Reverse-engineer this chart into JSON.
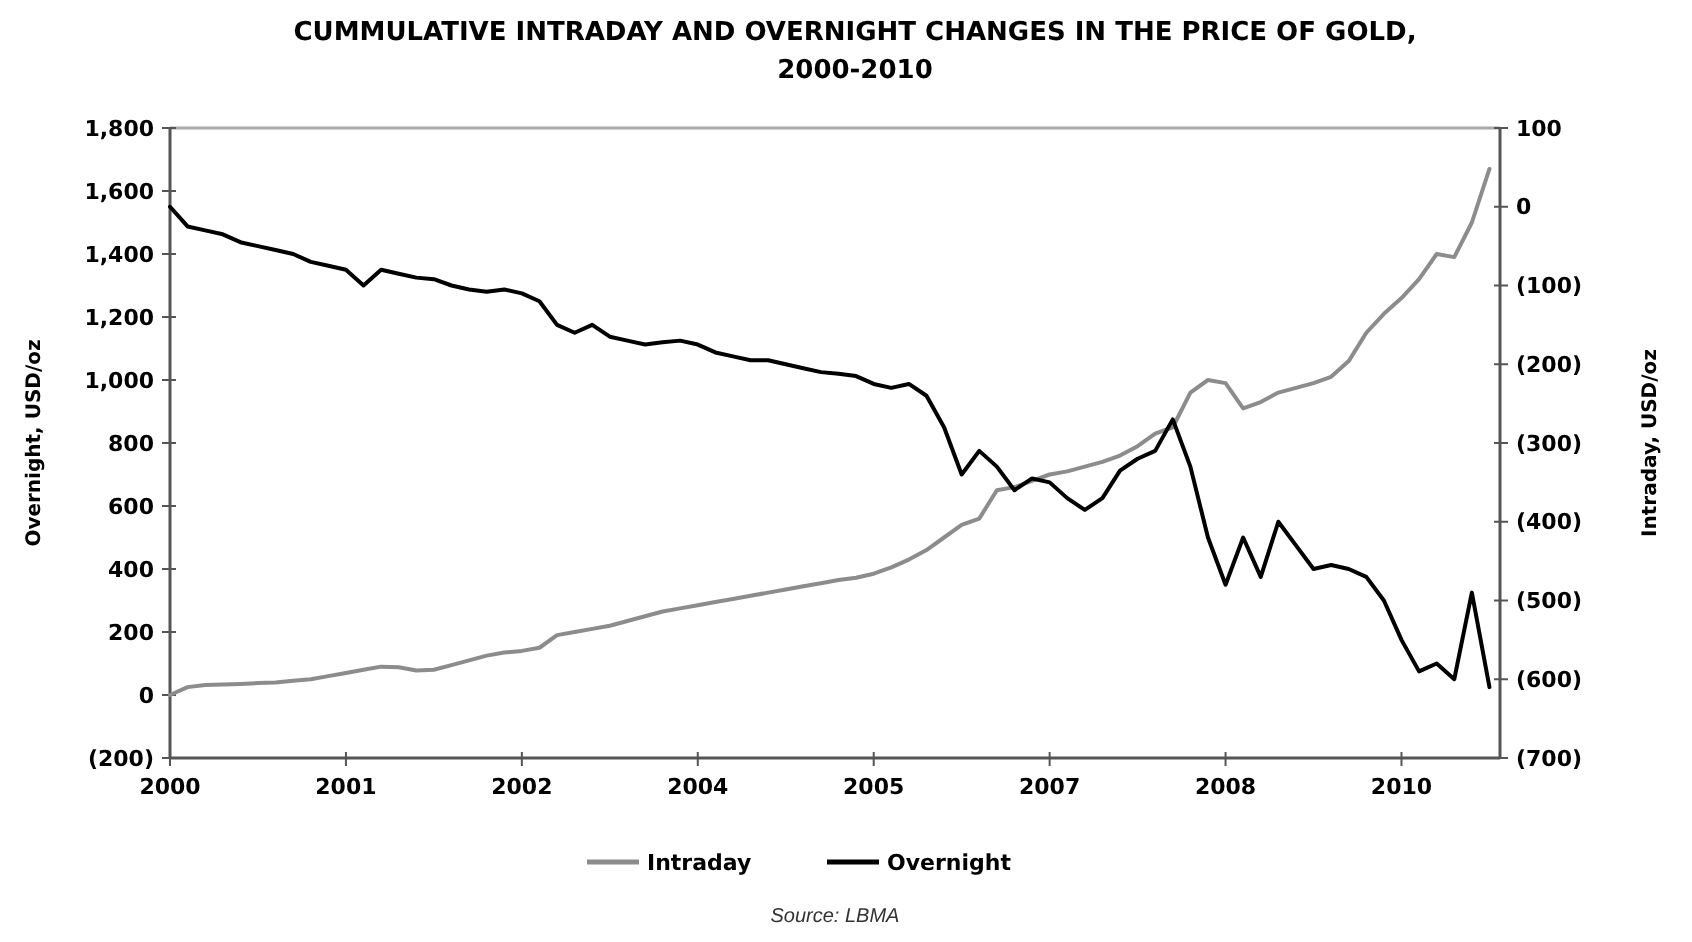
{
  "chart_data": {
    "type": "line",
    "title": "CUMMULATIVE INTRADAY AND OVERNIGHT CHANGES IN THE PRICE OF GOLD, 2000-2010",
    "ylabel": "Overnight, USD/oz",
    "y2label": "Intraday, USD/oz",
    "annotations": [
      "Source: LBMA"
    ],
    "legend": "bottom",
    "grid": false,
    "line_style": "solid",
    "marker": "none",
    "categories": [
      "2000",
      null,
      null,
      null,
      null,
      null,
      null,
      null,
      null,
      null,
      "2001",
      null,
      null,
      null,
      null,
      null,
      null,
      null,
      null,
      null,
      "2002",
      null,
      null,
      null,
      null,
      null,
      null,
      null,
      null,
      null,
      "2004",
      null,
      null,
      null,
      null,
      null,
      null,
      null,
      null,
      null,
      "2005",
      null,
      null,
      null,
      null,
      null,
      null,
      null,
      null,
      null,
      "2007",
      null,
      null,
      null,
      null,
      null,
      null,
      null,
      null,
      null,
      "2008",
      null,
      null,
      null,
      null,
      null,
      null,
      null,
      null,
      null,
      "2010",
      null,
      null,
      null,
      null,
      null
    ],
    "ylim": [
      -200,
      1800
    ],
    "yticks": [
      {
        "value": -200,
        "label": "(200)"
      },
      0,
      200,
      400,
      600,
      800,
      {
        "value": 1000,
        "label": "1,000"
      },
      {
        "value": 1200,
        "label": "1,200"
      },
      {
        "value": 1400,
        "label": "1,400"
      },
      {
        "value": 1600,
        "label": "1,600"
      },
      {
        "value": 1800,
        "label": "1,800"
      }
    ],
    "y2lim": [
      -700,
      100
    ],
    "y2ticks": [
      {
        "value": -700,
        "label": "(700)"
      },
      {
        "value": -600,
        "label": "(600)"
      },
      {
        "value": -500,
        "label": "(500)"
      },
      {
        "value": -400,
        "label": "(400)"
      },
      {
        "value": -300,
        "label": "(300)"
      },
      {
        "value": -200,
        "label": "(200)"
      },
      {
        "value": -100,
        "label": "(100)"
      },
      0,
      100
    ],
    "series": [
      {
        "name": "Intraday",
        "color": "#8c8c8c",
        "values": [
          0,
          25,
          32,
          33,
          35,
          38,
          40,
          45,
          50,
          60,
          70,
          80,
          90,
          88,
          78,
          80,
          95,
          110,
          125,
          135,
          140,
          150,
          190,
          200,
          210,
          220,
          235,
          250,
          265,
          275,
          285,
          295,
          305,
          315,
          325,
          335,
          345,
          355,
          365,
          372,
          385,
          405,
          430,
          460,
          500,
          540,
          560,
          650,
          660,
          680,
          700,
          710,
          725,
          740,
          760,
          790,
          830,
          850,
          960,
          1000,
          990,
          910,
          930,
          960,
          975,
          990,
          1010,
          1060,
          1150,
          1210,
          1260,
          1320,
          1400,
          1390,
          1500,
          1670
        ]
      },
      {
        "name": "Overnight",
        "color": "#000000",
        "axis": "y2",
        "values": [
          0,
          -25,
          -30,
          -35,
          -45,
          -50,
          -55,
          -60,
          -70,
          -75,
          -80,
          -100,
          -80,
          -85,
          -90,
          -92,
          -100,
          -105,
          -108,
          -105,
          -110,
          -120,
          -150,
          -160,
          -150,
          -165,
          -170,
          -175,
          -172,
          -170,
          -175,
          -185,
          -190,
          -195,
          -195,
          -200,
          -205,
          -210,
          -212,
          -215,
          -225,
          -230,
          -225,
          -240,
          -280,
          -340,
          -310,
          -330,
          -360,
          -345,
          -350,
          -370,
          -385,
          -370,
          -335,
          -320,
          -310,
          -270,
          -330,
          -420,
          -480,
          -420,
          -470,
          -400,
          -430,
          -460,
          -455,
          -460,
          -470,
          -500,
          -550,
          -590,
          -580,
          -600,
          -490,
          -610
        ]
      }
    ]
  }
}
